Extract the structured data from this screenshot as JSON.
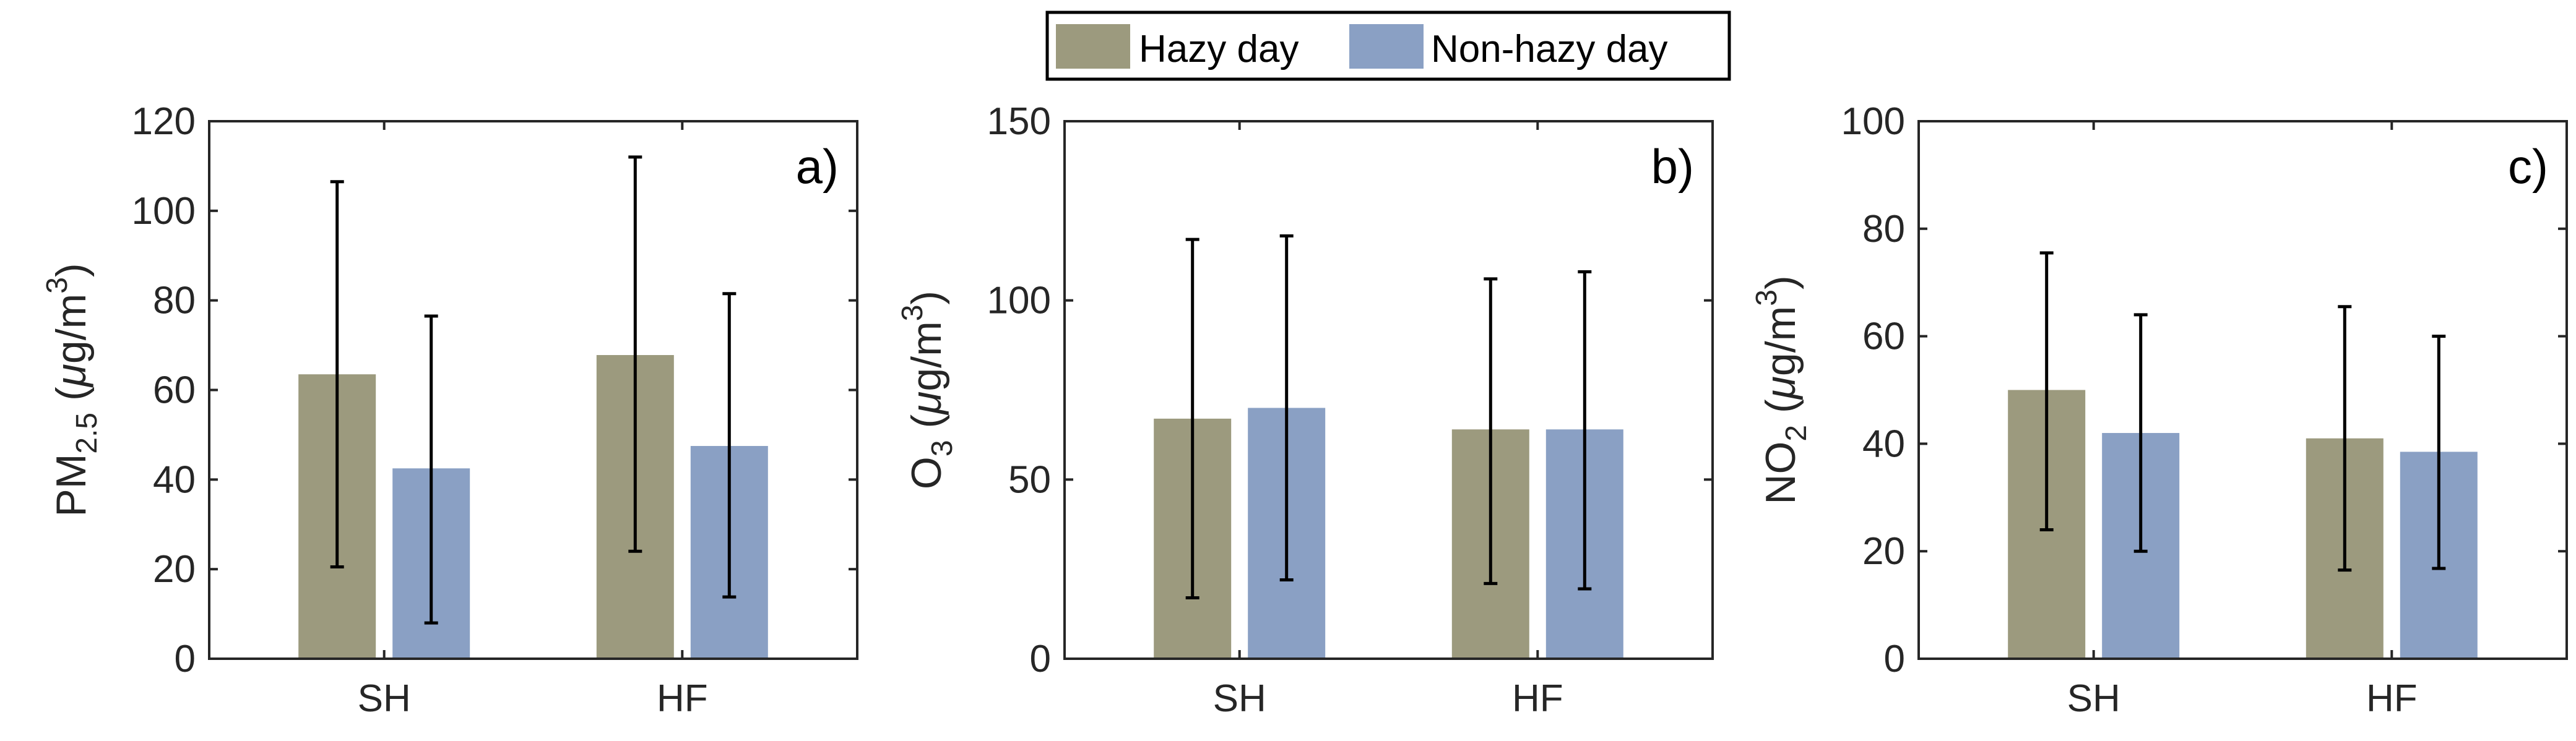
{
  "legend": {
    "items": [
      {
        "label": "Hazy day",
        "color": "#9c9a7e"
      },
      {
        "label": "Non-hazy day",
        "color": "#8aa0c4"
      }
    ]
  },
  "chart_data": [
    {
      "type": "bar",
      "panel_label": "a)",
      "categories": [
        "SH",
        "HF"
      ],
      "ylabel": {
        "main": "PM",
        "sub": "2.5",
        "unit_pre": " (",
        "unit_mu": "μ",
        "unit_mid": "g/m",
        "unit_sup": "3",
        "unit_post": ")"
      },
      "ylim": [
        0,
        120
      ],
      "yticks": [
        "0",
        "20",
        "40",
        "60",
        "80",
        "100",
        "120"
      ],
      "series": [
        {
          "name": "Hazy day",
          "values": [
            63.5,
            67.8
          ],
          "err_low": [
            20.5,
            24.0
          ],
          "err_high": [
            106.5,
            112.0
          ]
        },
        {
          "name": "Non-hazy day",
          "values": [
            42.5,
            47.5
          ],
          "err_low": [
            8.0,
            13.8
          ],
          "err_high": [
            76.5,
            81.5
          ]
        }
      ]
    },
    {
      "type": "bar",
      "panel_label": "b)",
      "categories": [
        "SH",
        "HF"
      ],
      "ylabel": {
        "main": "O",
        "sub": "3",
        "unit_pre": " (",
        "unit_mu": "μ",
        "unit_mid": "g/m",
        "unit_sup": "3",
        "unit_post": ")"
      },
      "ylim": [
        0,
        150
      ],
      "yticks": [
        "0",
        "50",
        "100",
        "150"
      ],
      "series": [
        {
          "name": "Hazy day",
          "values": [
            67,
            64
          ],
          "err_low": [
            17,
            21
          ],
          "err_high": [
            117,
            106
          ]
        },
        {
          "name": "Non-hazy day",
          "values": [
            70,
            64
          ],
          "err_low": [
            22,
            19.5
          ],
          "err_high": [
            118,
            108
          ]
        }
      ]
    },
    {
      "type": "bar",
      "panel_label": "c)",
      "categories": [
        "SH",
        "HF"
      ],
      "ylabel": {
        "main": "NO",
        "sub": "2",
        "unit_pre": " (",
        "unit_mu": "μ",
        "unit_mid": "g/m",
        "unit_sup": "3",
        "unit_post": ")"
      },
      "ylim": [
        0,
        100
      ],
      "yticks": [
        "0",
        "20",
        "40",
        "60",
        "80",
        "100"
      ],
      "series": [
        {
          "name": "Hazy day",
          "values": [
            50,
            41
          ],
          "err_low": [
            24,
            16.5
          ],
          "err_high": [
            75.5,
            65.5
          ]
        },
        {
          "name": "Non-hazy day",
          "values": [
            42,
            38.5
          ],
          "err_low": [
            20,
            16.8
          ],
          "err_high": [
            64,
            60
          ]
        }
      ]
    }
  ]
}
